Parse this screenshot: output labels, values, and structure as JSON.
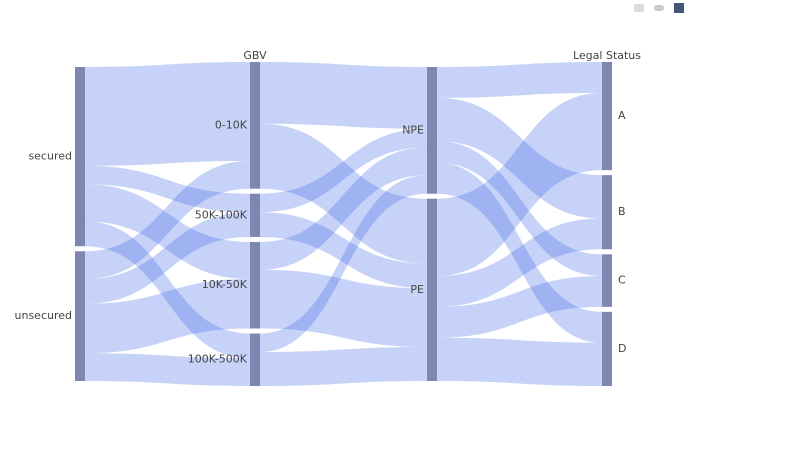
{
  "chart_data": {
    "type": "parcats",
    "color": "#4f74e8",
    "bar_color": "#7f86b2",
    "dimensions": [
      {
        "categories": [
          "secured",
          "unsecured"
        ],
        "counts": [
          58,
          42
        ]
      },
      {
        "label": "GBV",
        "categories": [
          "0-10K",
          "50K-100K",
          "10K-50K",
          "100K-500K"
        ],
        "counts": [
          41,
          14,
          28,
          17
        ]
      },
      {
        "categories": [
          "NPE",
          "PE"
        ],
        "counts": [
          41,
          59
        ]
      },
      {
        "label": "Legal Status",
        "categories": [
          "A",
          "B",
          "C",
          "D"
        ],
        "counts": [
          35,
          24,
          17,
          24
        ]
      }
    ],
    "flows": [
      [
        [
          32,
          6,
          12,
          8
        ],
        [
          9,
          8,
          16,
          9
        ]
      ],
      [
        [
          20,
          21
        ],
        [
          6,
          8
        ],
        [
          9,
          19
        ],
        [
          6,
          11
        ]
      ],
      [
        [
          10,
          14,
          7,
          10
        ],
        [
          25,
          10,
          10,
          14
        ]
      ]
    ]
  }
}
